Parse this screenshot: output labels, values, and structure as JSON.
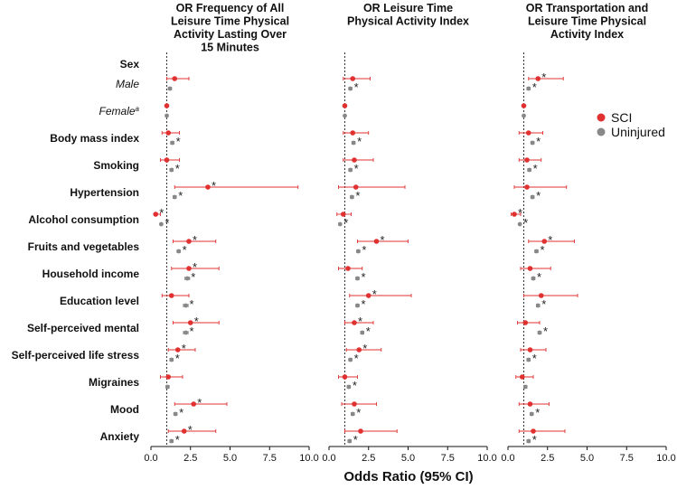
{
  "chart_data": {
    "type": "forest",
    "x_axis_label": "Odds Ratio (95% CI)",
    "xlim": [
      0,
      10
    ],
    "xticks": [
      0,
      2.5,
      5,
      7.5,
      10
    ],
    "xtick_labels": [
      "0.0",
      "2.5",
      "5.0",
      "7.5",
      "10.0"
    ],
    "reference_line": 1,
    "legend": [
      {
        "label": "SCI",
        "color": "#e03030"
      },
      {
        "label": "Uninjured",
        "color": "#888888"
      }
    ],
    "rows": [
      {
        "key": "sex",
        "label": "Sex",
        "style": "bold"
      },
      {
        "key": "male",
        "label": "Male",
        "style": "italic"
      },
      {
        "key": "female",
        "label": "Female",
        "superscript": "a",
        "style": "italic"
      },
      {
        "key": "bmi",
        "label": "Body mass index",
        "style": "bold"
      },
      {
        "key": "smoking",
        "label": "Smoking",
        "style": "bold"
      },
      {
        "key": "hypertension",
        "label": "Hypertension",
        "style": "bold"
      },
      {
        "key": "alcohol",
        "label": "Alcohol consumption",
        "style": "bold"
      },
      {
        "key": "fruits",
        "label": "Fruits and vegetables",
        "style": "bold"
      },
      {
        "key": "income",
        "label": "Household income",
        "style": "bold"
      },
      {
        "key": "education",
        "label": "Education level",
        "style": "bold"
      },
      {
        "key": "mental",
        "label": "Self-perceived mental",
        "style": "bold"
      },
      {
        "key": "stress",
        "label": "Self-perceived life stress",
        "style": "bold"
      },
      {
        "key": "migraines",
        "label": "Migraines",
        "style": "bold"
      },
      {
        "key": "mood",
        "label": "Mood",
        "style": "bold"
      },
      {
        "key": "anxiety",
        "label": "Anxiety",
        "style": "bold"
      }
    ],
    "panels": [
      {
        "title_lines": [
          "OR Frequency of All",
          "Leisure Time Physical",
          "Activity Lasting Over",
          "15 Minutes"
        ],
        "series": [
          {
            "name": "SCI",
            "points": [
              {
                "row": "male",
                "or": 1.5,
                "lo": 1.0,
                "hi": 2.4,
                "sig": false
              },
              {
                "row": "female",
                "or": 1.0,
                "lo": 1.0,
                "hi": 1.0,
                "sig": false
              },
              {
                "row": "bmi",
                "or": 1.1,
                "lo": 0.7,
                "hi": 1.8,
                "sig": false
              },
              {
                "row": "smoking",
                "or": 1.0,
                "lo": 0.6,
                "hi": 1.8,
                "sig": false
              },
              {
                "row": "hypertension",
                "or": 3.6,
                "lo": 1.5,
                "hi": 9.3,
                "sig": true
              },
              {
                "row": "alcohol",
                "or": 0.3,
                "lo": 0.2,
                "hi": 0.6,
                "sig": true
              },
              {
                "row": "fruits",
                "or": 2.4,
                "lo": 1.4,
                "hi": 4.1,
                "sig": true
              },
              {
                "row": "income",
                "or": 2.4,
                "lo": 1.3,
                "hi": 4.3,
                "sig": true
              },
              {
                "row": "education",
                "or": 1.3,
                "lo": 0.7,
                "hi": 2.4,
                "sig": false
              },
              {
                "row": "mental",
                "or": 2.5,
                "lo": 1.4,
                "hi": 4.3,
                "sig": true
              },
              {
                "row": "stress",
                "or": 1.7,
                "lo": 1.1,
                "hi": 2.8,
                "sig": true
              },
              {
                "row": "migraines",
                "or": 1.1,
                "lo": 0.6,
                "hi": 2.0,
                "sig": false
              },
              {
                "row": "mood",
                "or": 2.7,
                "lo": 1.5,
                "hi": 4.8,
                "sig": true
              },
              {
                "row": "anxiety",
                "or": 2.1,
                "lo": 1.1,
                "hi": 4.1,
                "sig": true
              }
            ]
          },
          {
            "name": "Uninjured",
            "points": [
              {
                "row": "male",
                "or": 1.2,
                "lo": 1.1,
                "hi": 1.3,
                "sig": false
              },
              {
                "row": "female",
                "or": 1.0,
                "lo": 1.0,
                "hi": 1.0,
                "sig": false
              },
              {
                "row": "bmi",
                "or": 1.35,
                "lo": 1.25,
                "hi": 1.45,
                "sig": true
              },
              {
                "row": "smoking",
                "or": 1.3,
                "lo": 1.2,
                "hi": 1.4,
                "sig": true
              },
              {
                "row": "hypertension",
                "or": 1.5,
                "lo": 1.4,
                "hi": 1.6,
                "sig": true
              },
              {
                "row": "alcohol",
                "or": 0.65,
                "lo": 0.6,
                "hi": 0.7,
                "sig": true
              },
              {
                "row": "fruits",
                "or": 1.75,
                "lo": 1.65,
                "hi": 1.85,
                "sig": true
              },
              {
                "row": "income",
                "or": 2.3,
                "lo": 2.15,
                "hi": 2.45,
                "sig": true
              },
              {
                "row": "education",
                "or": 2.2,
                "lo": 2.05,
                "hi": 2.35,
                "sig": true
              },
              {
                "row": "mental",
                "or": 2.2,
                "lo": 2.05,
                "hi": 2.35,
                "sig": true
              },
              {
                "row": "stress",
                "or": 1.3,
                "lo": 1.2,
                "hi": 1.4,
                "sig": true
              },
              {
                "row": "migraines",
                "or": 1.05,
                "lo": 0.95,
                "hi": 1.15,
                "sig": false
              },
              {
                "row": "mood",
                "or": 1.55,
                "lo": 1.45,
                "hi": 1.65,
                "sig": true
              },
              {
                "row": "anxiety",
                "or": 1.3,
                "lo": 1.2,
                "hi": 1.4,
                "sig": true
              }
            ]
          }
        ]
      },
      {
        "title_lines": [
          "OR Leisure Time",
          "Physical Activity Index"
        ],
        "series": [
          {
            "name": "SCI",
            "points": [
              {
                "row": "male",
                "or": 1.5,
                "lo": 0.9,
                "hi": 2.6,
                "sig": false
              },
              {
                "row": "female",
                "or": 1.0,
                "lo": 1.0,
                "hi": 1.0,
                "sig": false
              },
              {
                "row": "bmi",
                "or": 1.5,
                "lo": 0.9,
                "hi": 2.5,
                "sig": false
              },
              {
                "row": "smoking",
                "or": 1.6,
                "lo": 0.9,
                "hi": 2.8,
                "sig": false
              },
              {
                "row": "hypertension",
                "or": 1.7,
                "lo": 0.6,
                "hi": 4.8,
                "sig": false
              },
              {
                "row": "alcohol",
                "or": 0.9,
                "lo": 0.5,
                "hi": 1.4,
                "sig": false
              },
              {
                "row": "fruits",
                "or": 3.0,
                "lo": 1.8,
                "hi": 5.0,
                "sig": true
              },
              {
                "row": "income",
                "or": 1.2,
                "lo": 0.6,
                "hi": 2.1,
                "sig": false
              },
              {
                "row": "education",
                "or": 2.5,
                "lo": 1.3,
                "hi": 5.2,
                "sig": true
              },
              {
                "row": "mental",
                "or": 1.6,
                "lo": 1.0,
                "hi": 2.8,
                "sig": true
              },
              {
                "row": "stress",
                "or": 1.9,
                "lo": 1.1,
                "hi": 3.3,
                "sig": true
              },
              {
                "row": "migraines",
                "or": 1.0,
                "lo": 0.6,
                "hi": 1.8,
                "sig": false
              },
              {
                "row": "mood",
                "or": 1.6,
                "lo": 0.8,
                "hi": 3.0,
                "sig": false
              },
              {
                "row": "anxiety",
                "or": 2.0,
                "lo": 1.0,
                "hi": 4.3,
                "sig": false
              }
            ]
          },
          {
            "name": "Uninjured",
            "points": [
              {
                "row": "male",
                "or": 1.35,
                "lo": 1.25,
                "hi": 1.45,
                "sig": true
              },
              {
                "row": "female",
                "or": 1.0,
                "lo": 1.0,
                "hi": 1.0,
                "sig": false
              },
              {
                "row": "bmi",
                "or": 1.55,
                "lo": 1.45,
                "hi": 1.65,
                "sig": true
              },
              {
                "row": "smoking",
                "or": 1.35,
                "lo": 1.25,
                "hi": 1.45,
                "sig": true
              },
              {
                "row": "hypertension",
                "or": 1.45,
                "lo": 1.35,
                "hi": 1.55,
                "sig": true
              },
              {
                "row": "alcohol",
                "or": 0.7,
                "lo": 0.65,
                "hi": 0.75,
                "sig": true
              },
              {
                "row": "fruits",
                "or": 1.85,
                "lo": 1.75,
                "hi": 1.95,
                "sig": true
              },
              {
                "row": "income",
                "or": 1.8,
                "lo": 1.7,
                "hi": 1.9,
                "sig": true
              },
              {
                "row": "education",
                "or": 1.8,
                "lo": 1.7,
                "hi": 1.9,
                "sig": true
              },
              {
                "row": "mental",
                "or": 2.1,
                "lo": 2.0,
                "hi": 2.2,
                "sig": true
              },
              {
                "row": "stress",
                "or": 1.35,
                "lo": 1.25,
                "hi": 1.45,
                "sig": true
              },
              {
                "row": "migraines",
                "or": 1.25,
                "lo": 1.15,
                "hi": 1.35,
                "sig": true
              },
              {
                "row": "mood",
                "or": 1.5,
                "lo": 1.4,
                "hi": 1.6,
                "sig": true
              },
              {
                "row": "anxiety",
                "or": 1.3,
                "lo": 1.2,
                "hi": 1.4,
                "sig": true
              }
            ]
          }
        ]
      },
      {
        "title_lines": [
          "OR Transportation and",
          "Leisure Time Physical",
          "Activity Index"
        ],
        "series": [
          {
            "name": "SCI",
            "points": [
              {
                "row": "male",
                "or": 1.9,
                "lo": 1.3,
                "hi": 3.5,
                "sig": true
              },
              {
                "row": "female",
                "or": 1.0,
                "lo": 1.0,
                "hi": 1.0,
                "sig": false
              },
              {
                "row": "bmi",
                "or": 1.3,
                "lo": 0.7,
                "hi": 2.2,
                "sig": false
              },
              {
                "row": "smoking",
                "or": 1.2,
                "lo": 0.7,
                "hi": 2.1,
                "sig": false
              },
              {
                "row": "hypertension",
                "or": 1.2,
                "lo": 0.4,
                "hi": 3.7,
                "sig": false
              },
              {
                "row": "alcohol",
                "or": 0.4,
                "lo": 0.2,
                "hi": 0.8,
                "sig": true
              },
              {
                "row": "fruits",
                "or": 2.3,
                "lo": 1.3,
                "hi": 4.2,
                "sig": true
              },
              {
                "row": "income",
                "or": 1.4,
                "lo": 0.8,
                "hi": 2.7,
                "sig": false
              },
              {
                "row": "education",
                "or": 2.1,
                "lo": 1.0,
                "hi": 4.4,
                "sig": false
              },
              {
                "row": "mental",
                "or": 1.1,
                "lo": 0.6,
                "hi": 2.0,
                "sig": false
              },
              {
                "row": "stress",
                "or": 1.4,
                "lo": 0.8,
                "hi": 2.4,
                "sig": false
              },
              {
                "row": "migraines",
                "or": 0.9,
                "lo": 0.5,
                "hi": 1.6,
                "sig": false
              },
              {
                "row": "mood",
                "or": 1.4,
                "lo": 0.7,
                "hi": 2.6,
                "sig": false
              },
              {
                "row": "anxiety",
                "or": 1.6,
                "lo": 0.7,
                "hi": 3.6,
                "sig": false
              }
            ]
          },
          {
            "name": "Uninjured",
            "points": [
              {
                "row": "male",
                "or": 1.3,
                "lo": 1.2,
                "hi": 1.4,
                "sig": true
              },
              {
                "row": "female",
                "or": 1.0,
                "lo": 1.0,
                "hi": 1.0,
                "sig": false
              },
              {
                "row": "bmi",
                "or": 1.55,
                "lo": 1.45,
                "hi": 1.65,
                "sig": true
              },
              {
                "row": "smoking",
                "or": 1.35,
                "lo": 1.25,
                "hi": 1.45,
                "sig": true
              },
              {
                "row": "hypertension",
                "or": 1.55,
                "lo": 1.45,
                "hi": 1.65,
                "sig": true
              },
              {
                "row": "alcohol",
                "or": 0.75,
                "lo": 0.7,
                "hi": 0.8,
                "sig": true
              },
              {
                "row": "fruits",
                "or": 1.8,
                "lo": 1.7,
                "hi": 1.9,
                "sig": true
              },
              {
                "row": "income",
                "or": 1.6,
                "lo": 1.5,
                "hi": 1.7,
                "sig": true
              },
              {
                "row": "education",
                "or": 1.9,
                "lo": 1.8,
                "hi": 2.0,
                "sig": true
              },
              {
                "row": "mental",
                "or": 2.0,
                "lo": 1.9,
                "hi": 2.1,
                "sig": true
              },
              {
                "row": "stress",
                "or": 1.3,
                "lo": 1.2,
                "hi": 1.4,
                "sig": true
              },
              {
                "row": "migraines",
                "or": 1.1,
                "lo": 1.0,
                "hi": 1.2,
                "sig": false
              },
              {
                "row": "mood",
                "or": 1.5,
                "lo": 1.4,
                "hi": 1.6,
                "sig": true
              },
              {
                "row": "anxiety",
                "or": 1.3,
                "lo": 1.2,
                "hi": 1.4,
                "sig": true
              }
            ]
          }
        ]
      }
    ]
  }
}
